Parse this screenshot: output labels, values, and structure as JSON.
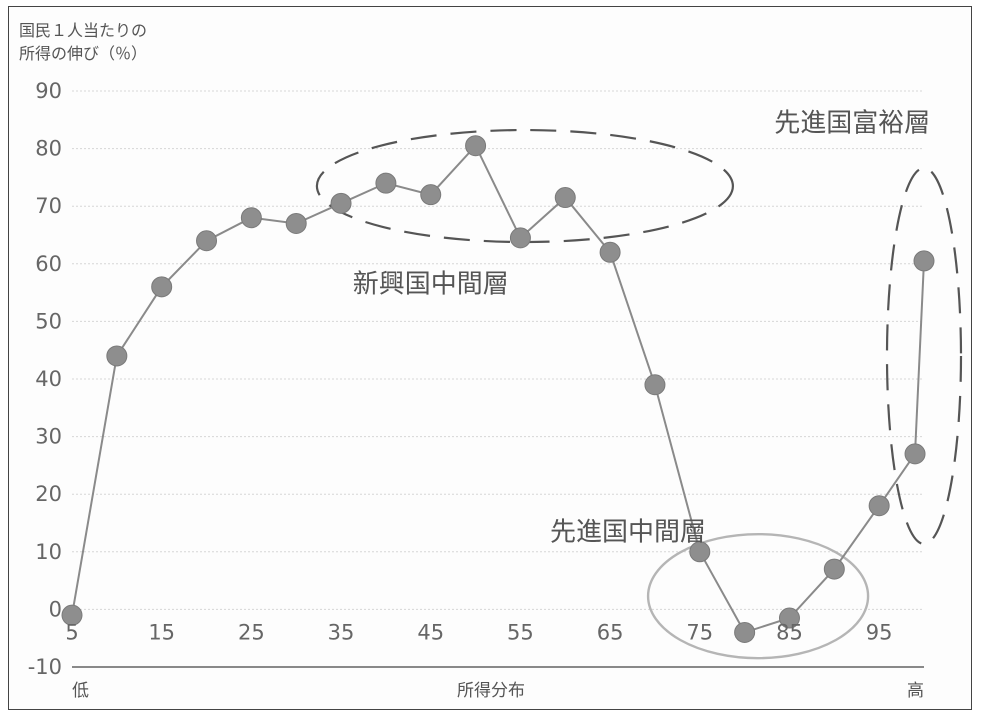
{
  "chart_data": {
    "type": "line",
    "ylabel": [
      "国民１人当たりの",
      "所得の伸び（％）"
    ],
    "xlabel": "所得分布",
    "x_end_labels": {
      "low": "低",
      "high": "高"
    },
    "x": [
      5,
      10,
      15,
      20,
      25,
      30,
      35,
      40,
      45,
      50,
      55,
      60,
      65,
      70,
      75,
      80,
      85,
      90,
      95,
      99,
      100
    ],
    "y": [
      -1,
      44,
      56,
      64,
      68,
      67,
      70.5,
      74,
      72,
      80.5,
      64.5,
      71.5,
      62,
      39,
      10,
      -4,
      -1.5,
      7,
      18,
      27,
      60.5
    ],
    "xticks": [
      "5",
      "15",
      "25",
      "35",
      "45",
      "55",
      "65",
      "75",
      "85",
      "95"
    ],
    "xtick_values": [
      5,
      15,
      25,
      35,
      45,
      55,
      65,
      75,
      85,
      95
    ],
    "yticks": [
      -10,
      0,
      10,
      20,
      30,
      40,
      50,
      60,
      70,
      80,
      90
    ],
    "xlim": [
      5,
      100
    ],
    "ylim": [
      -10,
      90
    ],
    "grid": true,
    "annotations": [
      {
        "text": "新興国中間層",
        "x": 45,
        "y": 55,
        "shape": "dashed-ellipse",
        "color": "#555555"
      },
      {
        "text": "先進国中間層",
        "x": 67,
        "y": 12,
        "shape": "solid-ellipse",
        "color": "#b5b5b5"
      },
      {
        "text": "先進国富裕層",
        "x": 92,
        "y": 83,
        "shape": "dashed-ellipse",
        "color": "#555555"
      }
    ],
    "colors": {
      "line": "#8a8a8a",
      "marker": "#8e8e8e",
      "grid": "#d6d6d6",
      "axis": "#444444"
    }
  }
}
